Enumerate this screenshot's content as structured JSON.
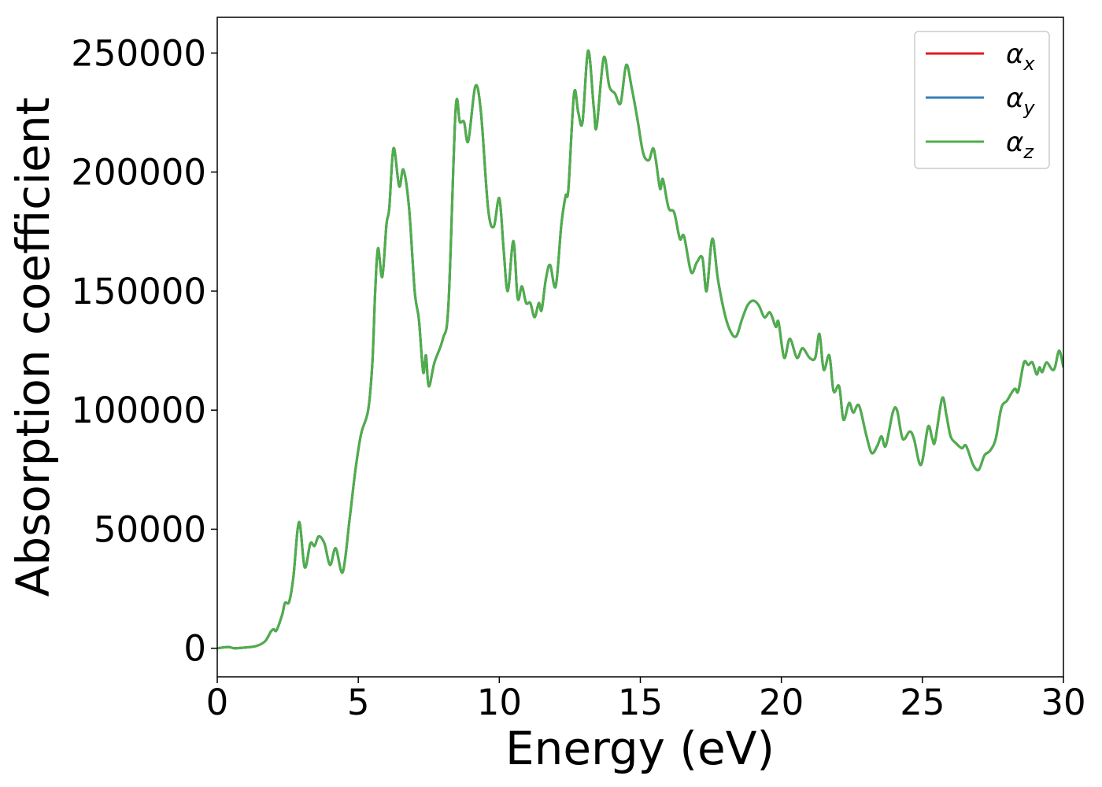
{
  "chart_data": {
    "type": "line",
    "xlabel": "Energy (eV)",
    "ylabel": "Absorption coefficient",
    "x": [
      0,
      0.4,
      0.6,
      1.0,
      1.4,
      1.7,
      1.9,
      2.0,
      2.1,
      2.3,
      2.4,
      2.55,
      2.7,
      2.9,
      3.1,
      3.3,
      3.45,
      3.6,
      3.8,
      4.0,
      4.2,
      4.45,
      4.7,
      4.9,
      5.1,
      5.35,
      5.5,
      5.6,
      5.7,
      5.85,
      6.0,
      6.1,
      6.25,
      6.45,
      6.6,
      6.8,
      7.0,
      7.15,
      7.3,
      7.4,
      7.5,
      7.7,
      8.0,
      8.2,
      8.45,
      8.6,
      8.75,
      8.9,
      9.15,
      9.35,
      9.6,
      9.8,
      10.0,
      10.15,
      10.3,
      10.5,
      10.65,
      10.8,
      10.95,
      11.1,
      11.25,
      11.4,
      11.5,
      11.65,
      11.8,
      12.0,
      12.2,
      12.35,
      12.45,
      12.65,
      12.8,
      12.95,
      13.15,
      13.35,
      13.45,
      13.7,
      13.9,
      14.1,
      14.3,
      14.5,
      14.7,
      14.9,
      15.1,
      15.3,
      15.45,
      15.55,
      15.7,
      15.8,
      16.0,
      16.2,
      16.4,
      16.55,
      16.8,
      17.0,
      17.2,
      17.35,
      17.55,
      17.75,
      18.0,
      18.2,
      18.4,
      18.6,
      18.8,
      19.0,
      19.2,
      19.4,
      19.6,
      19.8,
      19.9,
      20.1,
      20.3,
      20.55,
      20.75,
      21.0,
      21.2,
      21.35,
      21.5,
      21.7,
      21.85,
      22.05,
      22.2,
      22.4,
      22.55,
      22.75,
      23.0,
      23.2,
      23.4,
      23.55,
      23.7,
      23.95,
      24.1,
      24.3,
      24.55,
      24.7,
      24.95,
      25.2,
      25.35,
      25.45,
      25.7,
      25.85,
      26.0,
      26.2,
      26.4,
      26.55,
      26.8,
      27.0,
      27.2,
      27.4,
      27.6,
      27.8,
      28.0,
      28.2,
      28.3,
      28.4,
      28.6,
      28.75,
      28.9,
      29.05,
      29.15,
      29.25,
      29.4,
      29.6,
      29.7,
      29.85,
      30.0
    ],
    "series": [
      {
        "name": "αx",
        "color": "#e41a1c",
        "values": [
          0,
          500,
          0,
          300,
          1000,
          3000,
          7000,
          8000,
          7500,
          14000,
          19000,
          19500,
          30000,
          53000,
          34000,
          44000,
          43000,
          47000,
          44000,
          35000,
          42000,
          32000,
          55000,
          75000,
          90000,
          100000,
          120000,
          150000,
          168000,
          156000,
          178000,
          185000,
          210000,
          194000,
          201000,
          185000,
          150000,
          138000,
          116000,
          123000,
          110000,
          120000,
          130000,
          145000,
          226000,
          221000,
          221000,
          213000,
          236000,
          225000,
          185000,
          177000,
          189000,
          168000,
          150000,
          171000,
          147000,
          152000,
          145000,
          145000,
          139000,
          145000,
          142000,
          155000,
          161000,
          152000,
          178000,
          190000,
          193000,
          233000,
          225000,
          221000,
          251000,
          227000,
          219000,
          248000,
          236000,
          233000,
          229000,
          245000,
          235000,
          222000,
          208000,
          205000,
          210000,
          205000,
          193000,
          197000,
          185000,
          183000,
          172000,
          173000,
          158000,
          162000,
          164000,
          150000,
          172000,
          155000,
          140000,
          133000,
          131000,
          138000,
          144000,
          146000,
          144000,
          139000,
          141000,
          135000,
          137000,
          122000,
          130000,
          122000,
          126000,
          122000,
          122000,
          132000,
          117000,
          123000,
          108000,
          110000,
          96000,
          103000,
          99000,
          102000,
          90000,
          82000,
          85000,
          89000,
          85000,
          99000,
          100000,
          88000,
          91000,
          88000,
          77000,
          93000,
          88000,
          87000,
          105000,
          98000,
          89000,
          86000,
          84000,
          85000,
          77000,
          75000,
          81000,
          83000,
          88000,
          101000,
          104000,
          108000,
          109000,
          108000,
          120000,
          119000,
          120000,
          115000,
          118000,
          116000,
          120000,
          117000,
          118000,
          125000,
          118000
        ]
      },
      {
        "name": "αy",
        "color": "#377eb8",
        "values": [
          0,
          500,
          0,
          300,
          1000,
          3000,
          7000,
          8000,
          7500,
          14000,
          19000,
          19500,
          30000,
          53000,
          34000,
          44000,
          43000,
          47000,
          44000,
          35000,
          42000,
          32000,
          55000,
          75000,
          90000,
          100000,
          120000,
          150000,
          168000,
          156000,
          178000,
          185000,
          210000,
          194000,
          201000,
          185000,
          150000,
          138000,
          116000,
          123000,
          110000,
          120000,
          130000,
          145000,
          226000,
          221000,
          221000,
          213000,
          236000,
          225000,
          185000,
          177000,
          189000,
          168000,
          150000,
          171000,
          147000,
          152000,
          145000,
          145000,
          139000,
          145000,
          142000,
          155000,
          161000,
          152000,
          178000,
          190000,
          193000,
          233000,
          225000,
          221000,
          251000,
          227000,
          219000,
          248000,
          236000,
          233000,
          229000,
          245000,
          235000,
          222000,
          208000,
          205000,
          210000,
          205000,
          193000,
          197000,
          185000,
          183000,
          172000,
          173000,
          158000,
          162000,
          164000,
          150000,
          172000,
          155000,
          140000,
          133000,
          131000,
          138000,
          144000,
          146000,
          144000,
          139000,
          141000,
          135000,
          137000,
          122000,
          130000,
          122000,
          126000,
          122000,
          122000,
          132000,
          117000,
          123000,
          108000,
          110000,
          96000,
          103000,
          99000,
          102000,
          90000,
          82000,
          85000,
          89000,
          85000,
          99000,
          100000,
          88000,
          91000,
          88000,
          77000,
          93000,
          88000,
          87000,
          105000,
          98000,
          89000,
          86000,
          84000,
          85000,
          77000,
          75000,
          81000,
          83000,
          88000,
          101000,
          104000,
          108000,
          109000,
          108000,
          120000,
          119000,
          120000,
          115000,
          118000,
          116000,
          120000,
          117000,
          118000,
          125000,
          118000
        ]
      },
      {
        "name": "αz",
        "color": "#4daf4a",
        "values": [
          0,
          500,
          0,
          300,
          1000,
          3000,
          7000,
          8000,
          7500,
          14000,
          19000,
          19500,
          30000,
          53000,
          34000,
          44000,
          43000,
          47000,
          44000,
          35000,
          42000,
          32000,
          55000,
          75000,
          90000,
          100000,
          120000,
          150000,
          168000,
          156000,
          178000,
          185000,
          210000,
          194000,
          201000,
          185000,
          150000,
          138000,
          116000,
          123000,
          110000,
          120000,
          130000,
          145000,
          226000,
          221000,
          221000,
          213000,
          236000,
          225000,
          185000,
          177000,
          189000,
          168000,
          150000,
          171000,
          147000,
          152000,
          145000,
          145000,
          139000,
          145000,
          142000,
          155000,
          161000,
          152000,
          178000,
          190000,
          193000,
          233000,
          225000,
          221000,
          251000,
          227000,
          219000,
          248000,
          236000,
          233000,
          229000,
          245000,
          235000,
          222000,
          208000,
          205000,
          210000,
          205000,
          193000,
          197000,
          185000,
          183000,
          172000,
          173000,
          158000,
          162000,
          164000,
          150000,
          172000,
          155000,
          140000,
          133000,
          131000,
          138000,
          144000,
          146000,
          144000,
          139000,
          141000,
          135000,
          137000,
          122000,
          130000,
          122000,
          126000,
          122000,
          122000,
          132000,
          117000,
          123000,
          108000,
          110000,
          96000,
          103000,
          99000,
          102000,
          90000,
          82000,
          85000,
          89000,
          85000,
          99000,
          100000,
          88000,
          91000,
          88000,
          77000,
          93000,
          88000,
          87000,
          105000,
          98000,
          89000,
          86000,
          84000,
          85000,
          77000,
          75000,
          81000,
          83000,
          88000,
          101000,
          104000,
          108000,
          109000,
          108000,
          120000,
          119000,
          120000,
          115000,
          118000,
          116000,
          120000,
          117000,
          118000,
          125000,
          118000
        ]
      }
    ],
    "xlim": [
      0,
      30
    ],
    "xticks": [
      0,
      5,
      10,
      15,
      20,
      25,
      30
    ],
    "ylim": [
      -12000,
      265000
    ],
    "yticks": [
      0,
      50000,
      100000,
      150000,
      200000,
      250000
    ],
    "grid": false,
    "legend": "upper right"
  }
}
